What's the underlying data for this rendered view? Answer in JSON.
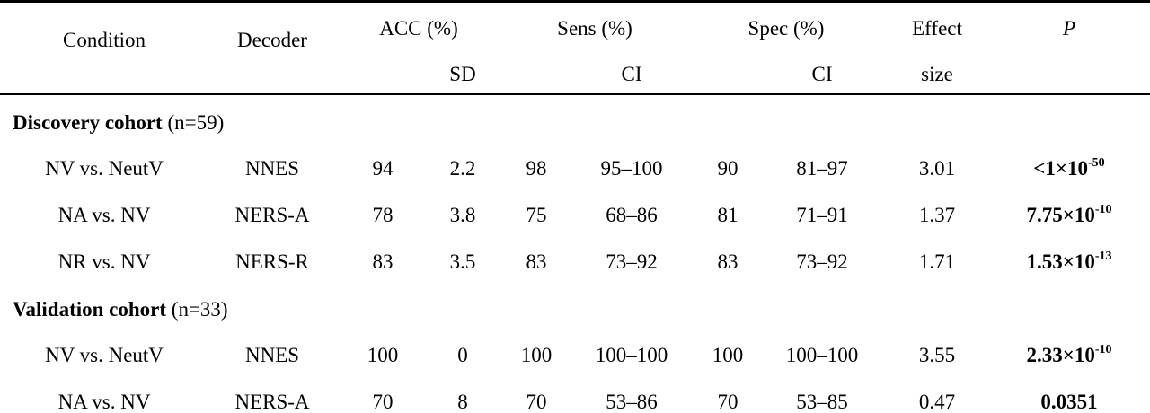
{
  "header": {
    "condition": "Condition",
    "decoder": "Decoder",
    "acc": "ACC (%)",
    "acc_sd": "SD",
    "sens": "Sens (%)",
    "sens_ci": "CI",
    "spec": "Spec (%)",
    "spec_ci": "CI",
    "effect_line1": "Effect",
    "effect_line2": "size",
    "p": "P"
  },
  "sections": [
    {
      "title": "Discovery cohort",
      "n": "(n=59)",
      "rows": [
        {
          "condition": "NV vs. NeutV",
          "decoder": "NNES",
          "acc": "94",
          "sd": "2.2",
          "sens": "98",
          "sens_ci": "95–100",
          "spec": "90",
          "spec_ci": "81–97",
          "effect": "3.01",
          "p_base": "<1×10",
          "p_exp": "-50"
        },
        {
          "condition": "NA vs. NV",
          "decoder": "NERS-A",
          "acc": "78",
          "sd": "3.8",
          "sens": "75",
          "sens_ci": "68–86",
          "spec": "81",
          "spec_ci": "71–91",
          "effect": "1.37",
          "p_base": "7.75×10",
          "p_exp": "-10"
        },
        {
          "condition": "NR vs. NV",
          "decoder": "NERS-R",
          "acc": "83",
          "sd": "3.5",
          "sens": "83",
          "sens_ci": "73–92",
          "spec": "83",
          "spec_ci": "73–92",
          "effect": "1.71",
          "p_base": "1.53×10",
          "p_exp": "-13"
        }
      ]
    },
    {
      "title": "Validation cohort",
      "n": "(n=33)",
      "rows": [
        {
          "condition": "NV vs. NeutV",
          "decoder": "NNES",
          "acc": "100",
          "sd": "0",
          "sens": "100",
          "sens_ci": "100–100",
          "spec": "100",
          "spec_ci": "100–100",
          "effect": "3.55",
          "p_base": "2.33×10",
          "p_exp": "-10"
        },
        {
          "condition": "NA vs. NV",
          "decoder": "NERS-A",
          "acc": "70",
          "sd": "8",
          "sens": "70",
          "sens_ci": "53–86",
          "spec": "70",
          "spec_ci": "53–85",
          "effect": "0.47",
          "p_base": "0.0351",
          "p_exp": ""
        }
      ]
    }
  ]
}
